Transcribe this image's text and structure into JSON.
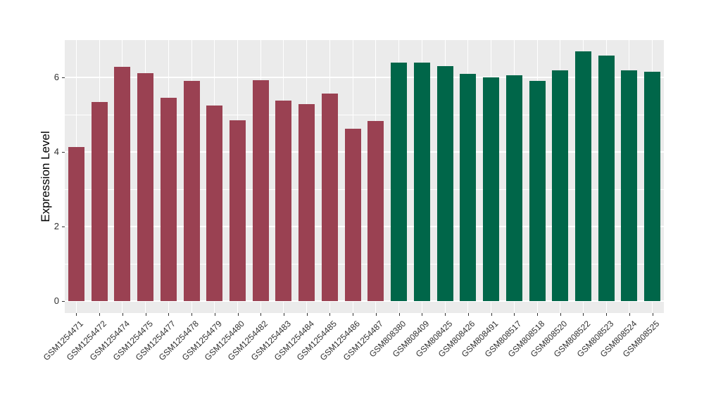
{
  "chart_data": {
    "type": "bar",
    "title": "",
    "xlabel": "",
    "ylabel": "Expression Level",
    "ylim": [
      0,
      7
    ],
    "yticks": [
      0,
      2,
      4,
      6
    ],
    "minor_gridlines": [
      1,
      3,
      5
    ],
    "grid": true,
    "legend": "none",
    "panel_bg": "#EBEBEB",
    "grid_color": "#FFFFFF",
    "colors": {
      "maroon": "#9A4152",
      "green": "#006649"
    },
    "categories": [
      "GSM1254471",
      "GSM1254472",
      "GSM1254474",
      "GSM1254475",
      "GSM1254477",
      "GSM1254478",
      "GSM1254479",
      "GSM1254480",
      "GSM1254482",
      "GSM1254483",
      "GSM1254484",
      "GSM1254485",
      "GSM1254486",
      "GSM1254487",
      "GSM808380",
      "GSM808409",
      "GSM808425",
      "GSM808426",
      "GSM808491",
      "GSM808517",
      "GSM808518",
      "GSM808520",
      "GSM808522",
      "GSM808523",
      "GSM808524",
      "GSM808525"
    ],
    "values": [
      4.13,
      5.33,
      6.29,
      6.12,
      5.45,
      5.9,
      5.25,
      4.84,
      5.92,
      5.37,
      5.29,
      5.57,
      4.62,
      4.83,
      6.4,
      6.4,
      6.31,
      6.09,
      6.0,
      6.05,
      5.9,
      6.18,
      6.69,
      6.58,
      6.18,
      6.15
    ],
    "bar_groups": [
      "maroon",
      "maroon",
      "maroon",
      "maroon",
      "maroon",
      "maroon",
      "maroon",
      "maroon",
      "maroon",
      "maroon",
      "maroon",
      "maroon",
      "maroon",
      "maroon",
      "green",
      "green",
      "green",
      "green",
      "green",
      "green",
      "green",
      "green",
      "green",
      "green",
      "green",
      "green"
    ]
  }
}
